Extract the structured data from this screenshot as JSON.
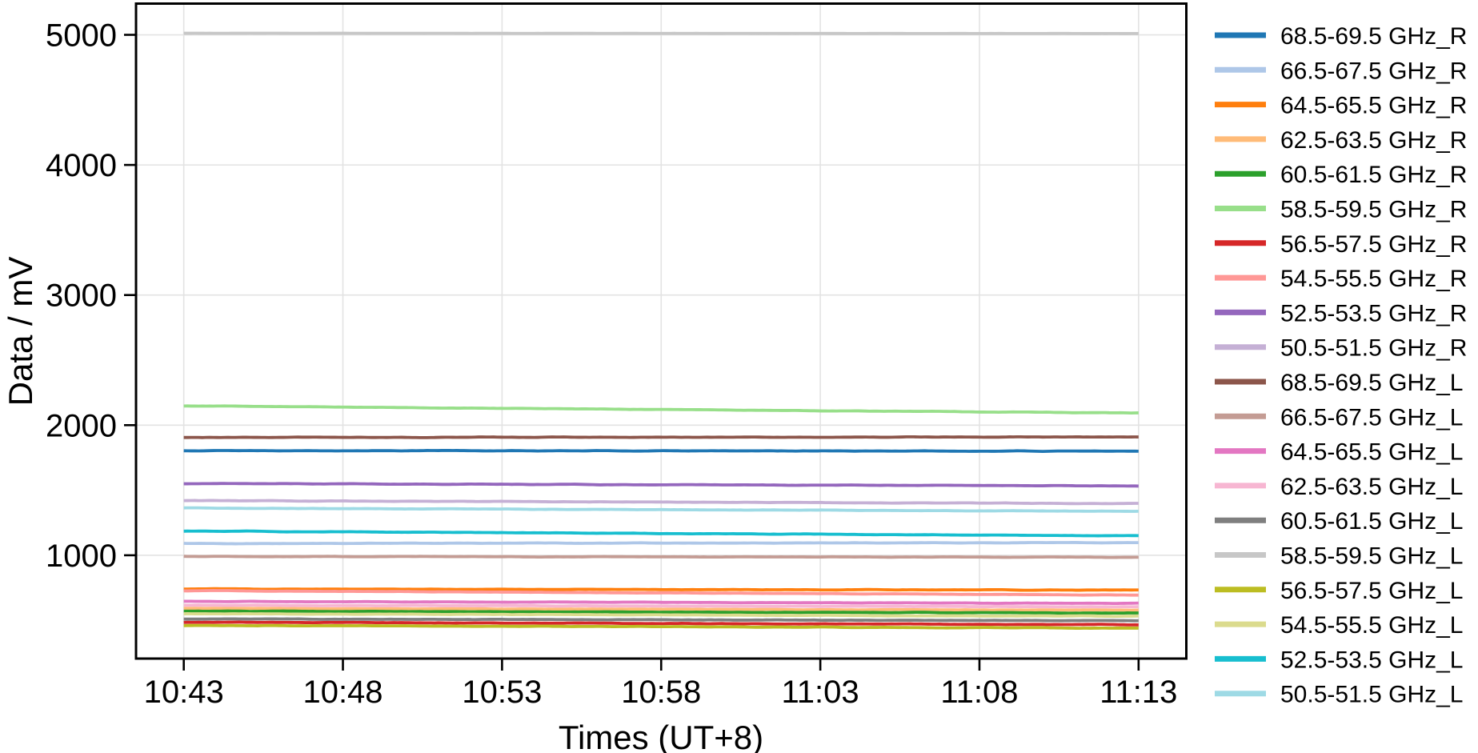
{
  "page": {
    "background": "#ffffff"
  },
  "chart_data": {
    "type": "line",
    "title": "",
    "xlabel": "Times (UT+8)",
    "ylabel": "Data / mV",
    "x_tick_labels": [
      "10:43",
      "10:48",
      "10:53",
      "10:58",
      "11:03",
      "11:08",
      "11:13"
    ],
    "x_tick_minutes_from_start": [
      0,
      5,
      10,
      15,
      20,
      25,
      30
    ],
    "x_range_minutes": [
      -1.5,
      31.5
    ],
    "y_ticks": [
      1000,
      2000,
      3000,
      4000,
      5000
    ],
    "y_tick_labels": [
      "1000",
      "2000",
      "3000",
      "4000",
      "5000"
    ],
    "ylim": [
      206,
      5240
    ],
    "grid": true,
    "grid_color": "#e3e3e3",
    "axis_color": "#000000",
    "legend_position": "right-outside",
    "series": [
      {
        "label": "68.5-69.5 GHz_R",
        "color": "#1f77b4",
        "start_mV": 1805,
        "end_mV": 1800,
        "shape": "flat-noisy"
      },
      {
        "label": "66.5-67.5 GHz_R",
        "color": "#aec7e8",
        "start_mV": 1090,
        "end_mV": 1097,
        "shape": "flat-noisy"
      },
      {
        "label": "64.5-65.5 GHz_R",
        "color": "#ff7f0e",
        "start_mV": 741,
        "end_mV": 732,
        "shape": "flat-noisy"
      },
      {
        "label": "62.5-63.5 GHz_R",
        "color": "#ffbb78",
        "start_mV": 592,
        "end_mV": 578,
        "shape": "flat-noisy"
      },
      {
        "label": "60.5-61.5 GHz_R",
        "color": "#2ca02c",
        "start_mV": 571,
        "end_mV": 556,
        "shape": "flat-noisy"
      },
      {
        "label": "58.5-59.5 GHz_R",
        "color": "#98df8a",
        "start_mV": 2148,
        "end_mV": 2093,
        "shape": "slight-decline"
      },
      {
        "label": "56.5-57.5 GHz_R",
        "color": "#d62728",
        "start_mV": 486,
        "end_mV": 466,
        "shape": "flat-noisy"
      },
      {
        "label": "54.5-55.5 GHz_R",
        "color": "#ff9896",
        "start_mV": 728,
        "end_mV": 694,
        "shape": "slight-decline"
      },
      {
        "label": "52.5-53.5 GHz_R",
        "color": "#9467bd",
        "start_mV": 1552,
        "end_mV": 1533,
        "shape": "flat-noisy"
      },
      {
        "label": "50.5-51.5 GHz_R",
        "color": "#c5b0d5",
        "start_mV": 1421,
        "end_mV": 1397,
        "shape": "flat-noisy"
      },
      {
        "label": "68.5-69.5 GHz_L",
        "color": "#8c564b",
        "start_mV": 1906,
        "end_mV": 1909,
        "shape": "flat-noisy"
      },
      {
        "label": "66.5-67.5 GHz_L",
        "color": "#c49c94",
        "start_mV": 991,
        "end_mV": 985,
        "shape": "flat-noisy"
      },
      {
        "label": "64.5-65.5 GHz_L",
        "color": "#e377c2",
        "start_mV": 646,
        "end_mV": 630,
        "shape": "flat-noisy"
      },
      {
        "label": "62.5-63.5 GHz_L",
        "color": "#f7b6d2",
        "start_mV": 616,
        "end_mV": 604,
        "shape": "flat-noisy"
      },
      {
        "label": "60.5-61.5 GHz_L",
        "color": "#7f7f7f",
        "start_mV": 511,
        "end_mV": 497,
        "shape": "flat-noisy"
      },
      {
        "label": "58.5-59.5 GHz_L",
        "color": "#c7c7c7",
        "start_mV": 5012,
        "end_mV": 5010,
        "shape": "flat"
      },
      {
        "label": "56.5-57.5 GHz_L",
        "color": "#bcbd22",
        "start_mV": 461,
        "end_mV": 440,
        "shape": "flat-noisy"
      },
      {
        "label": "54.5-55.5 GHz_L",
        "color": "#dbdb8d",
        "start_mV": 551,
        "end_mV": 531,
        "shape": "flat-noisy"
      },
      {
        "label": "52.5-53.5 GHz_L",
        "color": "#17becf",
        "start_mV": 1186,
        "end_mV": 1149,
        "shape": "slight-decline"
      },
      {
        "label": "50.5-51.5 GHz_L",
        "color": "#9edae5",
        "start_mV": 1363,
        "end_mV": 1338,
        "shape": "flat-noisy"
      }
    ]
  }
}
